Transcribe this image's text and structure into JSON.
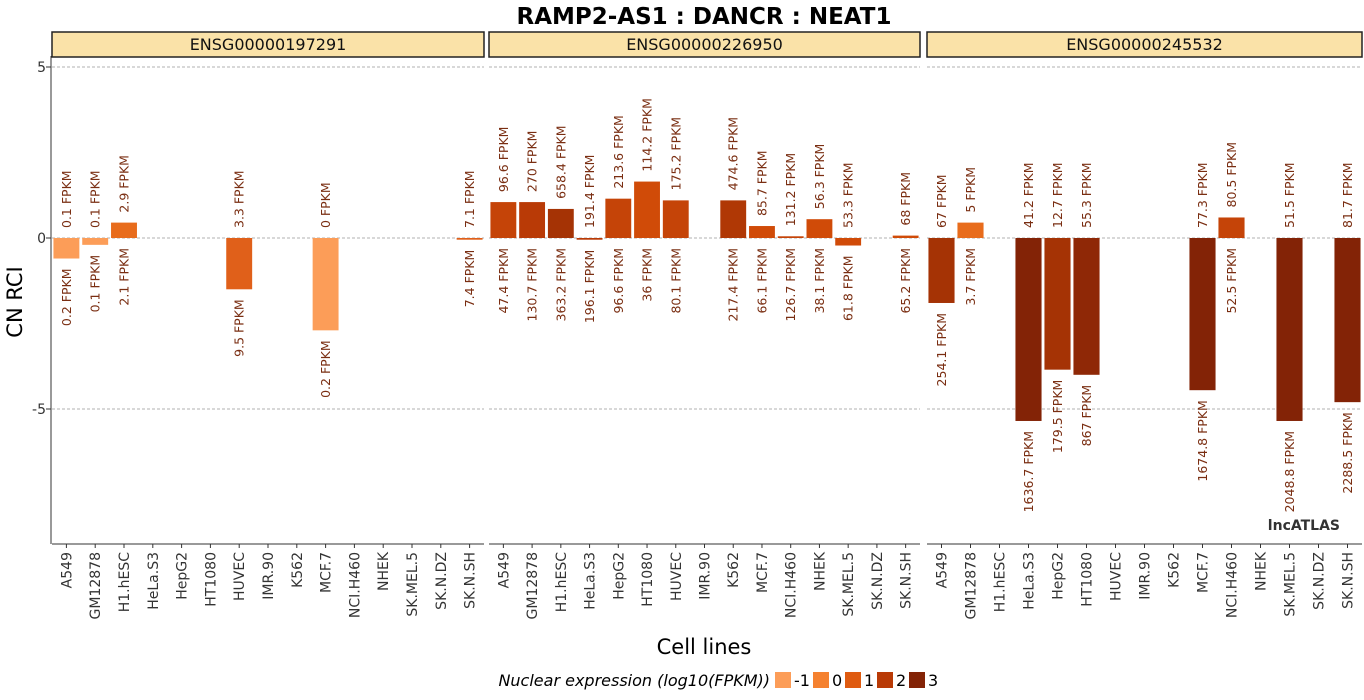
{
  "chart_data": {
    "type": "bar",
    "title": "RAMP2-AS1 : DANCR : NEAT1",
    "xlabel": "Cell lines",
    "ylabel": "CN RCI",
    "ylim": [
      -9,
      6
    ],
    "y_ticks": [
      5,
      0,
      -5
    ],
    "grid": true,
    "categories": [
      "A549",
      "GM12878",
      "H1.hESC",
      "HeLa.S3",
      "HepG2",
      "HT1080",
      "HUVEC",
      "IMR.90",
      "K562",
      "MCF.7",
      "NCI.H460",
      "NHEK",
      "SK.MEL.5",
      "SK.N.DZ",
      "SK.N.SH"
    ],
    "legend": {
      "title": "Nuclear expression (log10(FPKM))",
      "position": "bottom",
      "items": [
        {
          "label": "-1",
          "color": "#fc9d58"
        },
        {
          "label": "0",
          "color": "#f5812f"
        },
        {
          "label": "1",
          "color": "#df5b10"
        },
        {
          "label": "2",
          "color": "#b93a06"
        },
        {
          "label": "3",
          "color": "#832306"
        }
      ]
    },
    "watermark": "lncATLAS",
    "panels": [
      {
        "gene": "ENSG00000197291",
        "bars": [
          {
            "cell": "A549",
            "value": -0.6,
            "top": "0.1 FPKM",
            "bottom": "0.2 FPKM",
            "color": "#fc9d58"
          },
          {
            "cell": "GM12878",
            "value": -0.2,
            "top": "0.1 FPKM",
            "bottom": "0.1 FPKM",
            "color": "#fc9d58"
          },
          {
            "cell": "H1.hESC",
            "value": 0.45,
            "top": "2.9 FPKM",
            "bottom": "2.1 FPKM",
            "color": "#e86c1c"
          },
          {
            "cell": "HUVEC",
            "value": -1.5,
            "top": "3.3 FPKM",
            "bottom": "9.5 FPKM",
            "color": "#e0601a"
          },
          {
            "cell": "MCF.7",
            "value": -2.7,
            "top": "0 FPKM",
            "bottom": "0.2 FPKM",
            "color": "#fc9d58"
          },
          {
            "cell": "SK.N.SH",
            "value": -0.05,
            "top": "7.1 FPKM",
            "bottom": "7.4 FPKM",
            "color": "#e0601a"
          }
        ]
      },
      {
        "gene": "ENSG00000226950",
        "bars": [
          {
            "cell": "A549",
            "value": 1.05,
            "top": "96.6 FPKM",
            "bottom": "47.4 FPKM",
            "color": "#c54408"
          },
          {
            "cell": "GM12878",
            "value": 1.05,
            "top": "270 FPKM",
            "bottom": "130.7 FPKM",
            "color": "#b93a06"
          },
          {
            "cell": "H1.hESC",
            "value": 0.85,
            "top": "658.4 FPKM",
            "bottom": "363.2 FPKM",
            "color": "#a53305"
          },
          {
            "cell": "HeLa.S3",
            "value": -0.05,
            "top": "191.4 FPKM",
            "bottom": "196.1 FPKM",
            "color": "#b93a06"
          },
          {
            "cell": "HepG2",
            "value": 1.15,
            "top": "213.6 FPKM",
            "bottom": "96.6 FPKM",
            "color": "#c54408"
          },
          {
            "cell": "HT1080",
            "value": 1.65,
            "top": "114.2 FPKM",
            "bottom": "36 FPKM",
            "color": "#d04b08"
          },
          {
            "cell": "HUVEC",
            "value": 1.1,
            "top": "175.2 FPKM",
            "bottom": "80.1 FPKM",
            "color": "#c54408"
          },
          {
            "cell": "K562",
            "value": 1.1,
            "top": "474.6 FPKM",
            "bottom": "217.4 FPKM",
            "color": "#b03805"
          },
          {
            "cell": "MCF.7",
            "value": 0.35,
            "top": "85.7 FPKM",
            "bottom": "66.1 FPKM",
            "color": "#d04b08"
          },
          {
            "cell": "NCI.H460",
            "value": 0.05,
            "top": "131.2 FPKM",
            "bottom": "126.7 FPKM",
            "color": "#c54408"
          },
          {
            "cell": "NHEK",
            "value": 0.55,
            "top": "56.3 FPKM",
            "bottom": "38.1 FPKM",
            "color": "#d04b08"
          },
          {
            "cell": "SK.MEL.5",
            "value": -0.22,
            "top": "53.3 FPKM",
            "bottom": "61.8 FPKM",
            "color": "#d04b08"
          },
          {
            "cell": "SK.N.SH",
            "value": 0.07,
            "top": "68 FPKM",
            "bottom": "65.2 FPKM",
            "color": "#d04b08"
          }
        ]
      },
      {
        "gene": "ENSG00000245532",
        "bars": [
          {
            "cell": "A549",
            "value": -1.9,
            "top": "67 FPKM",
            "bottom": "254.1 FPKM",
            "color": "#a53305"
          },
          {
            "cell": "GM12878",
            "value": 0.45,
            "top": "5 FPKM",
            "bottom": "3.7 FPKM",
            "color": "#e86c1c"
          },
          {
            "cell": "HeLa.S3",
            "value": -5.35,
            "top": "41.2 FPKM",
            "bottom": "1636.7 FPKM",
            "color": "#832306"
          },
          {
            "cell": "HepG2",
            "value": -3.85,
            "top": "12.7 FPKM",
            "bottom": "179.5 FPKM",
            "color": "#a53305"
          },
          {
            "cell": "HT1080",
            "value": -4.0,
            "top": "55.3 FPKM",
            "bottom": "867 FPKM",
            "color": "#8f2806"
          },
          {
            "cell": "MCF.7",
            "value": -4.45,
            "top": "77.3 FPKM",
            "bottom": "1674.8 FPKM",
            "color": "#832306"
          },
          {
            "cell": "NCI.H460",
            "value": 0.6,
            "top": "80.5 FPKM",
            "bottom": "52.5 FPKM",
            "color": "#c54408"
          },
          {
            "cell": "SK.MEL.5",
            "value": -5.35,
            "top": "51.5 FPKM",
            "bottom": "2048.8 FPKM",
            "color": "#832306"
          },
          {
            "cell": "SK.N.SH",
            "value": -4.8,
            "top": "81.7 FPKM",
            "bottom": "2288.5 FPKM",
            "color": "#832306"
          }
        ]
      }
    ]
  }
}
